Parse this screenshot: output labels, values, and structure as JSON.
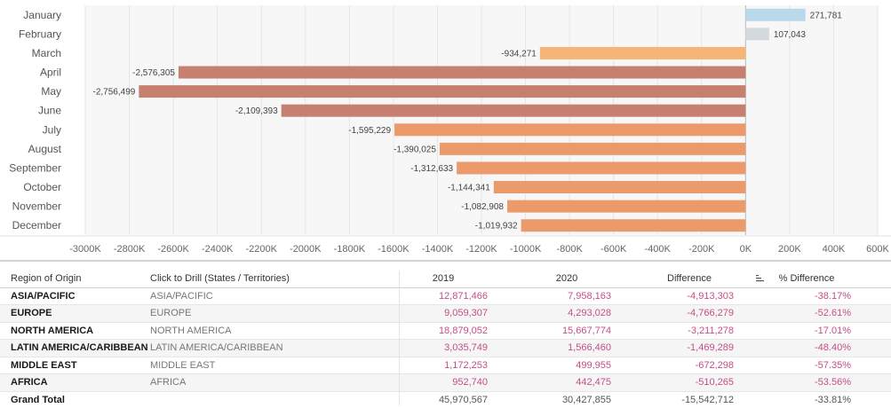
{
  "chart_data": {
    "type": "bar",
    "orientation": "horizontal",
    "categories": [
      "January",
      "February",
      "March",
      "April",
      "May",
      "June",
      "July",
      "August",
      "September",
      "October",
      "November",
      "December"
    ],
    "values": [
      271781,
      107043,
      -934271,
      -2576305,
      -2756499,
      -2109393,
      -1595229,
      -1390025,
      -1312633,
      -1144341,
      -1082908,
      -1019932
    ],
    "data_labels": [
      "271,781",
      "107,043",
      "-934,271",
      "-2,576,305",
      "-2,756,499",
      "-2,109,393",
      "-1,595,229",
      "-1,390,025",
      "-1,312,633",
      "-1,144,341",
      "-1,082,908",
      "-1,019,932"
    ],
    "tick_labels": [
      "-3000K",
      "-2800K",
      "-2600K",
      "-2400K",
      "-2200K",
      "-2000K",
      "-1800K",
      "-1600K",
      "-1400K",
      "-1200K",
      "-1000K",
      "-800K",
      "-600K",
      "-400K",
      "-200K",
      "0K",
      "200K",
      "400K",
      "600K"
    ],
    "xlim": [
      -3000000,
      600000
    ],
    "title": "",
    "xlabel": "",
    "ylabel": "",
    "grid": "vertical",
    "colors": {
      "positive_large": "#b9d8ea",
      "positive_small": "#d2dadd",
      "negative_light": "#f5b577",
      "negative_mid": "#eb9a6c",
      "negative_dark": "#c58070"
    }
  },
  "table": {
    "headers": {
      "region": "Region of  Origin",
      "drill": "Click to Drill (States / Territories)",
      "y2019": "2019",
      "y2020": "2020",
      "diff": "Difference",
      "pct": "% Difference"
    },
    "rows": [
      {
        "region": "ASIA/PACIFIC",
        "drill": "ASIA/PACIFIC",
        "y2019": "12,871,466",
        "y2020": "7,958,163",
        "diff": "-4,913,303",
        "pct": "-38.17%"
      },
      {
        "region": "EUROPE",
        "drill": "EUROPE",
        "y2019": "9,059,307",
        "y2020": "4,293,028",
        "diff": "-4,766,279",
        "pct": "-52.61%"
      },
      {
        "region": "NORTH AMERICA",
        "drill": "NORTH AMERICA",
        "y2019": "18,879,052",
        "y2020": "15,667,774",
        "diff": "-3,211,278",
        "pct": "-17.01%"
      },
      {
        "region": "LATIN AMERICA/CARIBBEAN",
        "drill": "LATIN AMERICA/CARIBBEAN",
        "y2019": "3,035,749",
        "y2020": "1,566,460",
        "diff": "-1,469,289",
        "pct": "-48.40%"
      },
      {
        "region": "MIDDLE EAST",
        "drill": "MIDDLE EAST",
        "y2019": "1,172,253",
        "y2020": "499,955",
        "diff": "-672,298",
        "pct": "-57.35%"
      },
      {
        "region": "AFRICA",
        "drill": "AFRICA",
        "y2019": "952,740",
        "y2020": "442,475",
        "diff": "-510,265",
        "pct": "-53.56%"
      }
    ],
    "total": {
      "region": "Grand Total",
      "y2019": "45,970,567",
      "y2020": "30,427,855",
      "diff": "-15,542,712",
      "pct": "-33.81%"
    },
    "sort_icon": "sort-icon"
  }
}
